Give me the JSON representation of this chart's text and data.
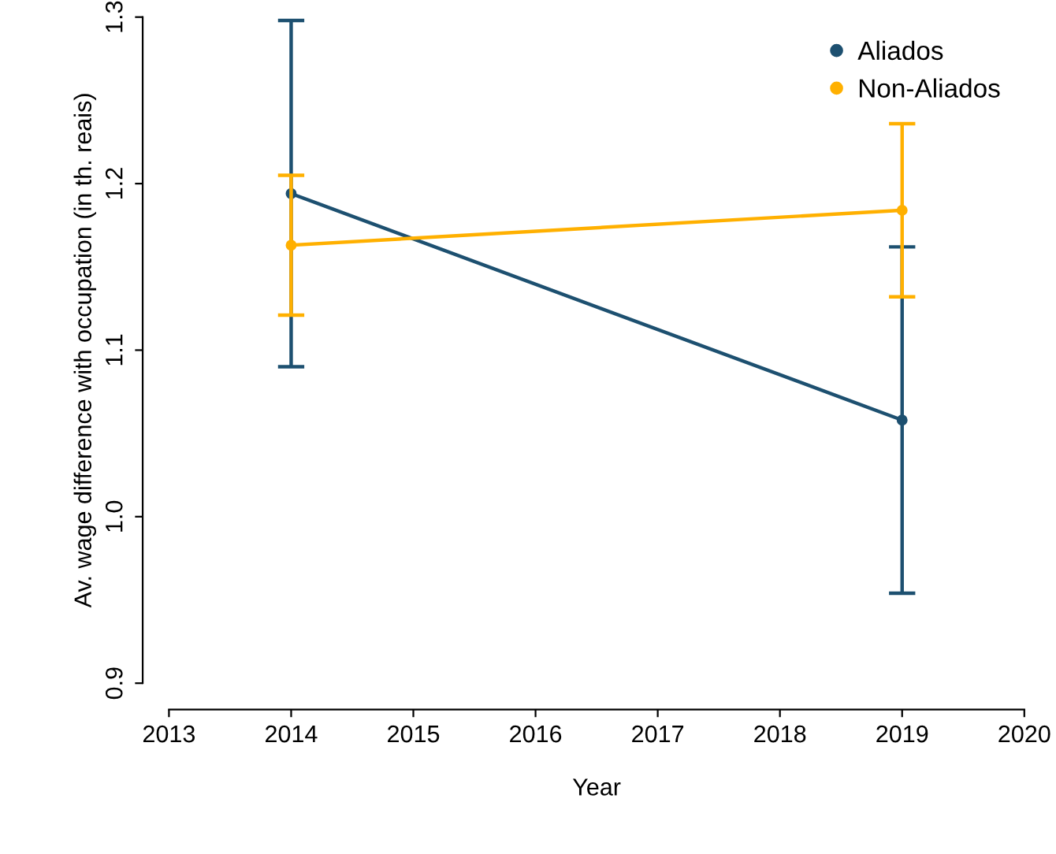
{
  "chart_data": {
    "type": "line",
    "xlabel": "Year",
    "ylabel": "Av. wage difference with occupation (in th. reais)",
    "x": [
      2014,
      2019
    ],
    "series": [
      {
        "name": "Aliados",
        "color": "#1d5070",
        "values": [
          1.194,
          1.058
        ],
        "errors": [
          0.104,
          0.104
        ]
      },
      {
        "name": "Non-Aliados",
        "color": "#ffb000",
        "values": [
          1.163,
          1.184
        ],
        "errors": [
          0.042,
          0.052
        ]
      }
    ],
    "xlim": [
      2013,
      2020
    ],
    "xticks": [
      2013,
      2014,
      2015,
      2016,
      2017,
      2018,
      2019,
      2020
    ],
    "ylim": [
      0.9,
      1.3
    ],
    "yticks": [
      0.9,
      {
        "value": 1.0,
        "label": "1.0"
      },
      1.1,
      1.2,
      1.3
    ],
    "grid": false,
    "legend": "top right",
    "marker": "circle",
    "line_style": "solid"
  }
}
